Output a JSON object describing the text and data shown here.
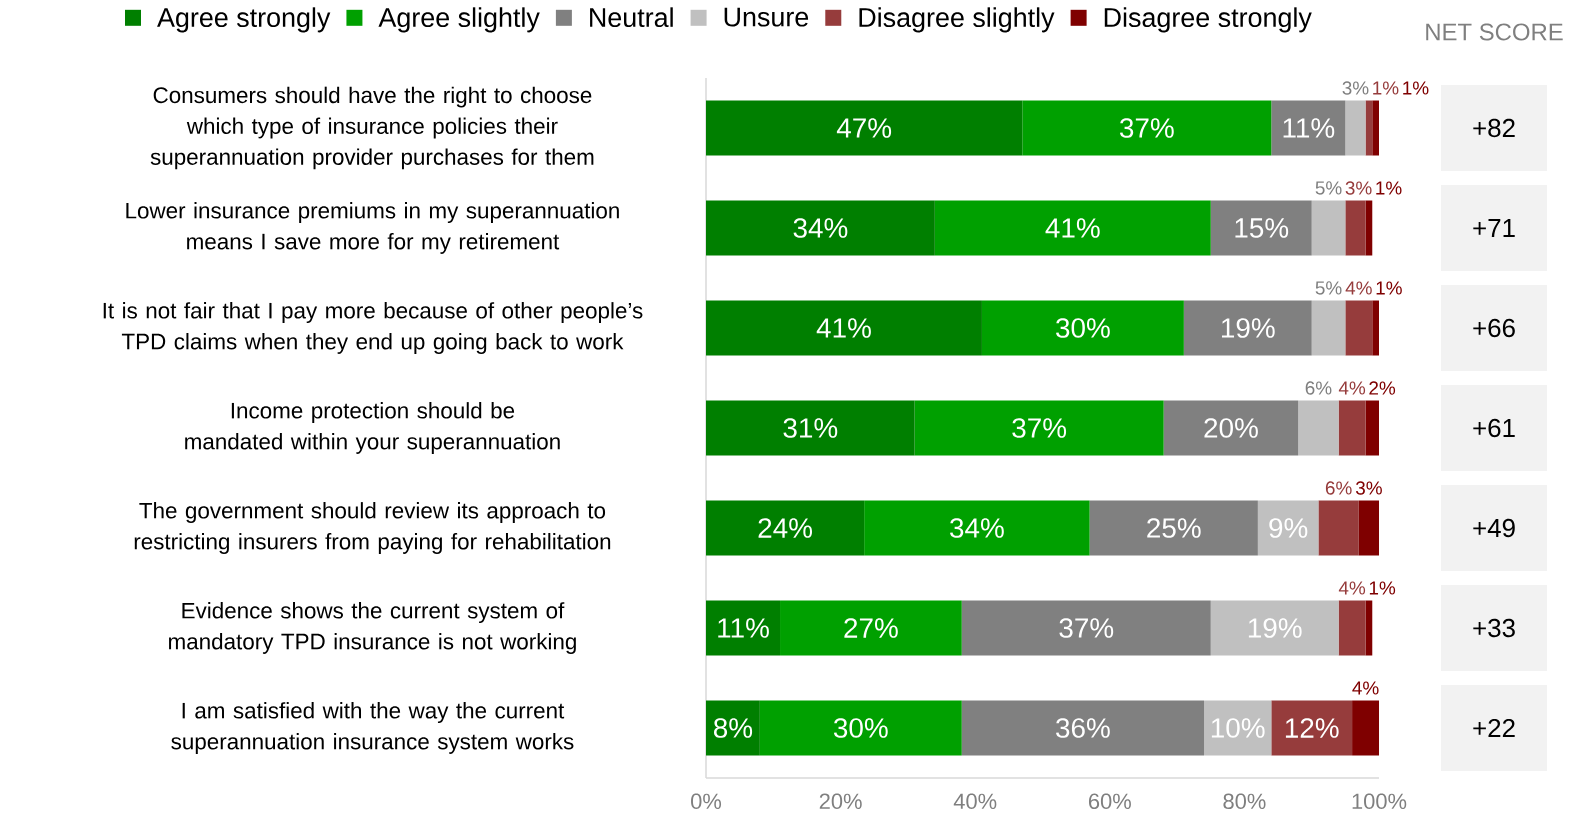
{
  "chart_data": {
    "type": "bar",
    "orientation": "horizontal",
    "stacked": true,
    "legend": "top",
    "categories": [
      "Consumers should have the right to choose which type of insurance policies their superannuation provider purchases for them",
      "Lower insurance premiums in my superannuation means I save more for my retirement",
      "It is not fair that I pay more because of other people’s TPD claims when they end up going back to work",
      "Income protection should be mandated within your superannuation",
      "The government should review its approach to restricting insurers from paying for rehabilitation",
      "Evidence shows the current system of mandatory TPD insurance is not working",
      "I am satisfied with the way the current superannuation insurance system works"
    ],
    "series": [
      {
        "name": "Agree strongly",
        "color": "#007f00",
        "values": [
          47,
          34,
          41,
          31,
          23.5,
          11,
          8
        ],
        "value_labels": [
          "47%",
          "34%",
          "41%",
          "31%",
          "24%",
          "11%",
          "8%"
        ]
      },
      {
        "name": "Agree slightly",
        "color": "#00a000",
        "values": [
          37,
          41,
          30,
          37,
          33.5,
          27,
          30
        ],
        "value_labels": [
          "37%",
          "41%",
          "30%",
          "37%",
          "34%",
          "27%",
          "30%"
        ]
      },
      {
        "name": "Neutral",
        "color": "#808080",
        "values": [
          11,
          15,
          19,
          20,
          25,
          37,
          36
        ],
        "value_labels": [
          "11%",
          "15%",
          "19%",
          "20%",
          "25%",
          "37%",
          "36%"
        ]
      },
      {
        "name": "Unsure",
        "color": "#c0c0c0",
        "values": [
          3,
          5,
          5,
          6,
          9,
          19,
          10
        ],
        "value_labels": [
          "3%",
          "5%",
          "5%",
          "6%",
          "9%",
          "19%",
          "10%"
        ]
      },
      {
        "name": "Disagree slightly",
        "color": "#963c3c",
        "values": [
          1,
          3,
          4,
          4,
          6,
          4,
          12
        ],
        "value_labels": [
          "1%",
          "3%",
          "4%",
          "4%",
          "6%",
          "4%",
          "12%"
        ]
      },
      {
        "name": "Disagree strongly",
        "color": "#7f0000",
        "values": [
          1,
          1,
          1,
          2,
          3,
          1,
          4
        ],
        "value_labels": [
          "1%",
          "1%",
          "1%",
          "2%",
          "3%",
          "1%",
          "4%"
        ]
      }
    ],
    "xlim": [
      0,
      100
    ],
    "xticks": [
      {
        "value": 0,
        "label": "0%"
      },
      {
        "value": 20,
        "label": "20%"
      },
      {
        "value": 40,
        "label": "40%"
      },
      {
        "value": 60,
        "label": "60%"
      },
      {
        "value": 80,
        "label": "80%"
      },
      {
        "value": 100,
        "label": "100%"
      }
    ],
    "annotations": [
      "NET SCORE",
      "+82",
      "+71",
      "+66",
      "+61",
      "+49",
      "+33",
      "+22"
    ]
  }
}
